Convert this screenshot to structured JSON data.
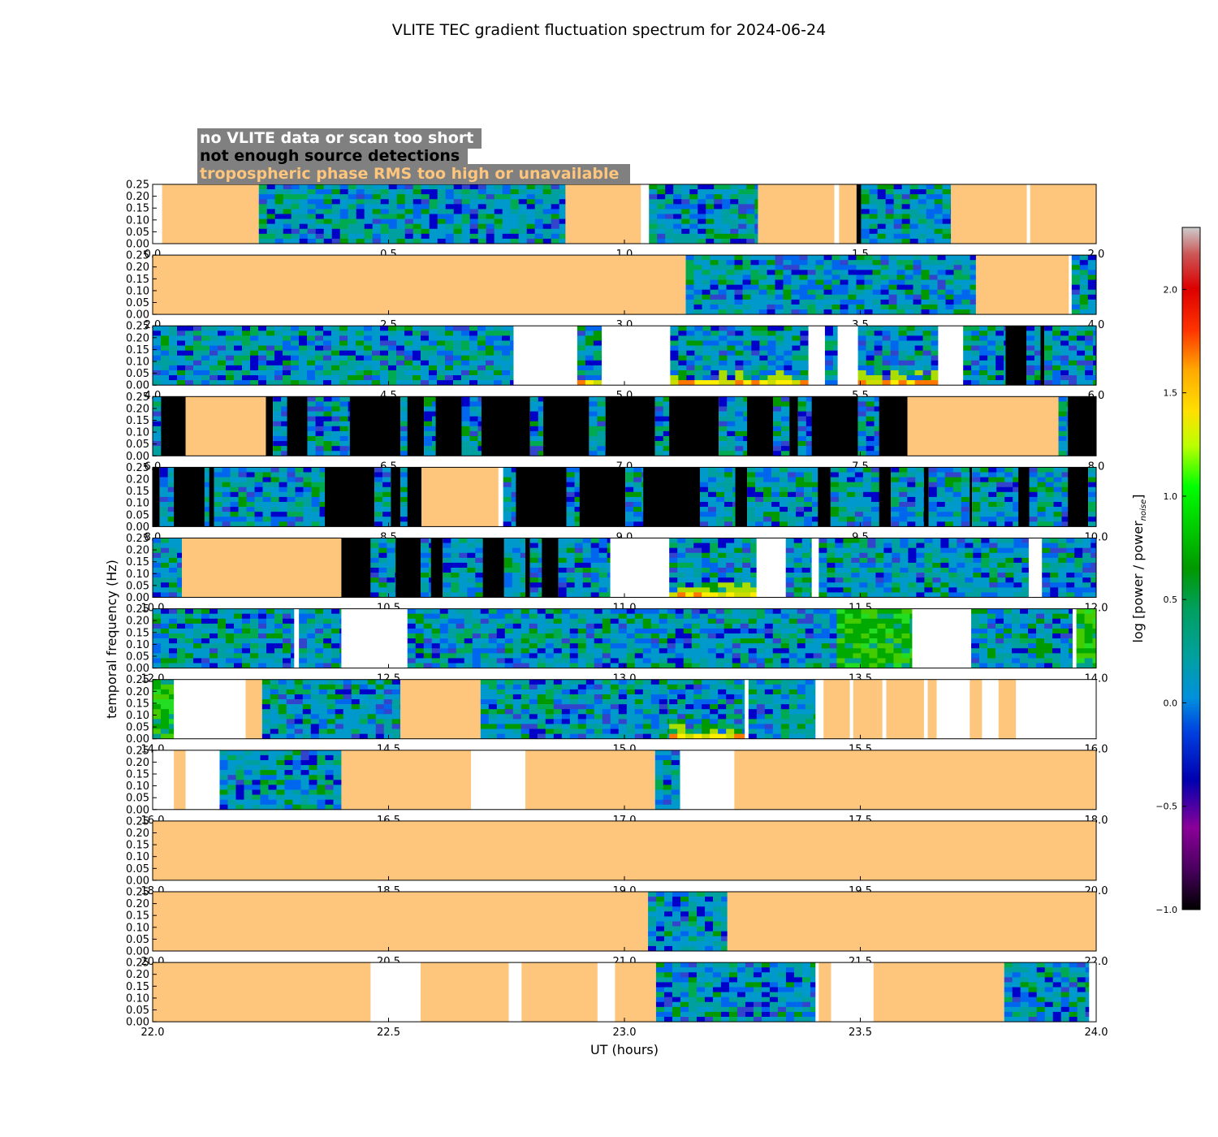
{
  "chart_data": {
    "type": "heatmap",
    "title": "VLITE TEC gradient fluctuation spectrum for 2024-06-24",
    "xlabel": "UT (hours)",
    "ylabel": "temporal frequency (Hz)",
    "ylim": [
      0,
      0.25
    ],
    "yticks": [
      "0.00",
      "0.05",
      "0.10",
      "0.15",
      "0.20",
      "0.25"
    ],
    "colorbar": {
      "label_main": "log [power / power",
      "label_sub": "noise",
      "label_close": "]",
      "range": [
        -1.0,
        2.3
      ],
      "ticks": [
        "−1.0",
        "−0.5",
        "0.0",
        "0.5",
        "1.0",
        "1.5",
        "2.0"
      ],
      "tick_values": [
        -1.0,
        -0.5,
        0.0,
        0.5,
        1.0,
        1.5,
        2.0
      ]
    },
    "legend": {
      "placement": "top-left",
      "entries": [
        {
          "label": "no VLITE data or scan too short",
          "color": "#ffffff"
        },
        {
          "label": "not enough source detections",
          "color": "#000000"
        },
        {
          "label": "tropospheric phase RMS too high or unavailable",
          "color": "#fec57c"
        }
      ]
    },
    "colors": {
      "trop": "#fec57c",
      "nodet": "#000000",
      "nodata": "#ffffff",
      "legend_bg": "#808080"
    },
    "panels": [
      {
        "x_range": [
          0,
          2
        ],
        "xticks": [
          "0.0",
          "0.5",
          "1.0",
          "1.5",
          "2.0"
        ],
        "segments": [
          [
            "w",
            0.0,
            0.02
          ],
          [
            "t",
            0.02,
            0.225
          ],
          [
            "s",
            0.225,
            0.875
          ],
          [
            "t",
            0.875,
            1.035
          ],
          [
            "w",
            1.035,
            1.052
          ],
          [
            "s",
            1.052,
            1.283
          ],
          [
            "t",
            1.283,
            1.445
          ],
          [
            "w",
            1.445,
            1.455
          ],
          [
            "t",
            1.455,
            1.492
          ],
          [
            "b",
            1.492,
            1.502
          ],
          [
            "s",
            1.502,
            1.692
          ],
          [
            "t",
            1.692,
            1.853
          ],
          [
            "w",
            1.853,
            1.86
          ],
          [
            "t",
            1.86,
            2.0
          ]
        ]
      },
      {
        "x_range": [
          2,
          4
        ],
        "xticks": [
          "2.0",
          "2.5",
          "3.0",
          "3.5",
          "4.0"
        ],
        "segments": [
          [
            "t",
            2.0,
            3.13
          ],
          [
            "s",
            3.13,
            3.745
          ],
          [
            "t",
            3.745,
            3.942
          ],
          [
            "w",
            3.942,
            3.948
          ],
          [
            "s",
            3.948,
            4.0
          ]
        ]
      },
      {
        "x_range": [
          4,
          6
        ],
        "xticks": [
          "4.0",
          "4.5",
          "5.0",
          "5.5",
          "6.0"
        ],
        "segments": [
          [
            "s",
            4.0,
            4.765
          ],
          [
            "w",
            4.765,
            4.9
          ],
          [
            "s",
            4.9,
            4.952,
            "hot"
          ],
          [
            "w",
            4.952,
            5.097
          ],
          [
            "s",
            5.097,
            5.39,
            "hot"
          ],
          [
            "w",
            5.39,
            5.425
          ],
          [
            "s",
            5.425,
            5.452
          ],
          [
            "w",
            5.452,
            5.495
          ],
          [
            "s",
            5.495,
            5.665,
            "hot"
          ],
          [
            "w",
            5.665,
            5.718
          ],
          [
            "s",
            5.718,
            5.808
          ],
          [
            "b",
            5.808,
            5.852
          ],
          [
            "s",
            5.852,
            5.882
          ],
          [
            "b",
            5.882,
            5.89
          ],
          [
            "s",
            5.89,
            6.0
          ]
        ]
      },
      {
        "x_range": [
          6,
          8
        ],
        "xticks": [
          "6.0",
          "6.5",
          "7.0",
          "7.5",
          "8.0"
        ],
        "segments": [
          [
            "s",
            6.0,
            6.018
          ],
          [
            "b",
            6.018,
            6.07
          ],
          [
            "t",
            6.07,
            6.24
          ],
          [
            "b",
            6.24,
            6.255
          ],
          [
            "s",
            6.255,
            6.285
          ],
          [
            "b",
            6.285,
            6.328
          ],
          [
            "s",
            6.328,
            6.418
          ],
          [
            "b",
            6.418,
            6.525
          ],
          [
            "s",
            6.525,
            6.54
          ],
          [
            "b",
            6.54,
            6.575
          ],
          [
            "s",
            6.575,
            6.6
          ],
          [
            "b",
            6.6,
            6.655
          ],
          [
            "s",
            6.655,
            6.697
          ],
          [
            "b",
            6.697,
            6.8
          ],
          [
            "s",
            6.8,
            6.828
          ],
          [
            "b",
            6.828,
            6.925
          ],
          [
            "s",
            6.925,
            6.96
          ],
          [
            "b",
            6.96,
            7.065
          ],
          [
            "s",
            7.065,
            7.095
          ],
          [
            "b",
            7.095,
            7.2
          ],
          [
            "s",
            7.2,
            7.26
          ],
          [
            "b",
            7.26,
            7.315
          ],
          [
            "s",
            7.315,
            7.35
          ],
          [
            "b",
            7.35,
            7.368
          ],
          [
            "s",
            7.368,
            7.397
          ],
          [
            "b",
            7.397,
            7.495
          ],
          [
            "s",
            7.495,
            7.54
          ],
          [
            "b",
            7.54,
            7.6
          ],
          [
            "t",
            7.6,
            7.92
          ],
          [
            "s",
            7.92,
            7.94
          ],
          [
            "b",
            7.94,
            8.0
          ]
        ]
      },
      {
        "x_range": [
          8,
          10
        ],
        "xticks": [
          "8.0",
          "8.5",
          "9.0",
          "9.5",
          "10.0"
        ],
        "segments": [
          [
            "b",
            8.0,
            8.015
          ],
          [
            "s",
            8.015,
            8.045
          ],
          [
            "b",
            8.045,
            8.11
          ],
          [
            "s",
            8.11,
            8.12
          ],
          [
            "b",
            8.12,
            8.13
          ],
          [
            "s",
            8.13,
            8.365
          ],
          [
            "b",
            8.365,
            8.47
          ],
          [
            "s",
            8.47,
            8.505
          ],
          [
            "b",
            8.505,
            8.525
          ],
          [
            "s",
            8.525,
            8.54
          ],
          [
            "b",
            8.54,
            8.57
          ],
          [
            "t",
            8.57,
            8.733
          ],
          [
            "w",
            8.733,
            8.743
          ],
          [
            "s",
            8.743,
            8.77
          ],
          [
            "b",
            8.77,
            8.877
          ],
          [
            "s",
            8.877,
            8.905
          ],
          [
            "b",
            8.905,
            9.002
          ],
          [
            "s",
            9.002,
            9.04
          ],
          [
            "b",
            9.04,
            9.16
          ],
          [
            "s",
            9.16,
            9.235
          ],
          [
            "b",
            9.235,
            9.26
          ],
          [
            "s",
            9.26,
            9.41
          ],
          [
            "b",
            9.41,
            9.437
          ],
          [
            "s",
            9.437,
            9.54
          ],
          [
            "b",
            9.54,
            9.565
          ],
          [
            "s",
            9.565,
            9.635
          ],
          [
            "b",
            9.635,
            9.645
          ],
          [
            "s",
            9.645,
            9.732
          ],
          [
            "b",
            9.732,
            9.737
          ],
          [
            "s",
            9.737,
            9.835
          ],
          [
            "b",
            9.835,
            9.858
          ],
          [
            "s",
            9.858,
            9.94
          ],
          [
            "b",
            9.94,
            9.983
          ],
          [
            "s",
            9.983,
            10.0
          ]
        ]
      },
      {
        "x_range": [
          10,
          12
        ],
        "xticks": [
          "10.0",
          "10.5",
          "11.0",
          "11.5",
          "12.0"
        ],
        "segments": [
          [
            "s",
            10.0,
            10.062
          ],
          [
            "t",
            10.062,
            10.4
          ],
          [
            "b",
            10.4,
            10.462
          ],
          [
            "s",
            10.462,
            10.515
          ],
          [
            "b",
            10.515,
            10.568
          ],
          [
            "s",
            10.568,
            10.59
          ],
          [
            "b",
            10.59,
            10.615
          ],
          [
            "s",
            10.615,
            10.7
          ],
          [
            "b",
            10.7,
            10.745
          ],
          [
            "s",
            10.745,
            10.79
          ],
          [
            "b",
            10.79,
            10.8
          ],
          [
            "s",
            10.8,
            10.825
          ],
          [
            "b",
            10.825,
            10.86
          ],
          [
            "s",
            10.86,
            10.97
          ],
          [
            "w",
            10.97,
            11.095
          ],
          [
            "s",
            11.095,
            11.28,
            "hot"
          ],
          [
            "w",
            11.28,
            11.342
          ],
          [
            "s",
            11.342,
            11.397
          ],
          [
            "w",
            11.397,
            11.412
          ],
          [
            "s",
            11.412,
            11.857
          ],
          [
            "w",
            11.857,
            11.885
          ],
          [
            "s",
            11.885,
            12.0
          ]
        ]
      },
      {
        "x_range": [
          12,
          14
        ],
        "xticks": [
          "12.0",
          "12.5",
          "13.0",
          "13.5",
          "14.0"
        ],
        "segments": [
          [
            "s",
            12.0,
            12.3
          ],
          [
            "w",
            12.3,
            12.31
          ],
          [
            "s",
            12.31,
            12.4
          ],
          [
            "w",
            12.4,
            12.54
          ],
          [
            "s",
            12.54,
            13.45
          ],
          [
            "s",
            13.45,
            13.61,
            "green"
          ],
          [
            "w",
            13.61,
            13.735
          ],
          [
            "s",
            13.735,
            13.95
          ],
          [
            "w",
            13.95,
            13.958
          ],
          [
            "s",
            13.958,
            14.0,
            "green"
          ]
        ]
      },
      {
        "x_range": [
          14,
          16
        ],
        "xticks": [
          "14.0",
          "14.5",
          "15.0",
          "15.5",
          "16.0"
        ],
        "segments": [
          [
            "s",
            14.0,
            14.045,
            "green"
          ],
          [
            "w",
            14.045,
            14.197
          ],
          [
            "t",
            14.197,
            14.232
          ],
          [
            "s",
            14.232,
            14.525
          ],
          [
            "t",
            14.525,
            14.695
          ],
          [
            "s",
            14.695,
            15.095
          ],
          [
            "s",
            15.095,
            15.255,
            "hot"
          ],
          [
            "w",
            15.255,
            15.263
          ],
          [
            "s",
            15.263,
            15.405
          ],
          [
            "w",
            15.405,
            15.422
          ],
          [
            "t",
            15.422,
            15.478
          ],
          [
            "w",
            15.478,
            15.485
          ],
          [
            "t",
            15.485,
            15.547
          ],
          [
            "w",
            15.547,
            15.555
          ],
          [
            "t",
            15.555,
            15.635
          ],
          [
            "w",
            15.635,
            15.643
          ],
          [
            "t",
            15.643,
            15.662
          ],
          [
            "w",
            15.662,
            15.732
          ],
          [
            "t",
            15.732,
            15.758
          ],
          [
            "w",
            15.758,
            15.793
          ],
          [
            "t",
            15.793,
            15.83
          ],
          [
            "w",
            15.83,
            16.0
          ]
        ]
      },
      {
        "x_range": [
          16,
          18
        ],
        "xticks": [
          "16.0",
          "16.5",
          "17.0",
          "17.5",
          "18.0"
        ],
        "segments": [
          [
            "w",
            16.0,
            16.045
          ],
          [
            "t",
            16.045,
            16.07
          ],
          [
            "w",
            16.07,
            16.142
          ],
          [
            "s",
            16.142,
            16.4
          ],
          [
            "t",
            16.4,
            16.675
          ],
          [
            "w",
            16.675,
            16.79
          ],
          [
            "t",
            16.79,
            17.065
          ],
          [
            "s",
            17.065,
            17.118
          ],
          [
            "w",
            17.118,
            17.233
          ],
          [
            "t",
            17.233,
            18.0
          ]
        ]
      },
      {
        "x_range": [
          18,
          20
        ],
        "xticks": [
          "18.0",
          "18.5",
          "19.0",
          "19.5",
          "20.0"
        ],
        "segments": [
          [
            "t",
            18.0,
            20.0
          ]
        ]
      },
      {
        "x_range": [
          20,
          22
        ],
        "xticks": [
          "20.0",
          "20.5",
          "21.0",
          "21.5",
          "22.0"
        ],
        "segments": [
          [
            "t",
            20.0,
            21.05
          ],
          [
            "s",
            21.05,
            21.218
          ],
          [
            "t",
            21.218,
            22.0
          ]
        ]
      },
      {
        "x_range": [
          22,
          24
        ],
        "xticks": [
          "22.0",
          "22.5",
          "23.0",
          "23.5",
          "24.0"
        ],
        "segments": [
          [
            "t",
            22.0,
            22.462
          ],
          [
            "w",
            22.462,
            22.568
          ],
          [
            "t",
            22.568,
            22.755
          ],
          [
            "w",
            22.755,
            22.782
          ],
          [
            "t",
            22.782,
            22.943
          ],
          [
            "w",
            22.943,
            22.98
          ],
          [
            "t",
            22.98,
            23.067
          ],
          [
            "s",
            23.067,
            23.405
          ],
          [
            "w",
            23.405,
            23.412
          ],
          [
            "t",
            23.412,
            23.438
          ],
          [
            "w",
            23.438,
            23.528
          ],
          [
            "t",
            23.528,
            23.805
          ],
          [
            "s",
            23.805,
            23.985
          ],
          [
            "w",
            23.985,
            24.0
          ]
        ]
      }
    ]
  }
}
